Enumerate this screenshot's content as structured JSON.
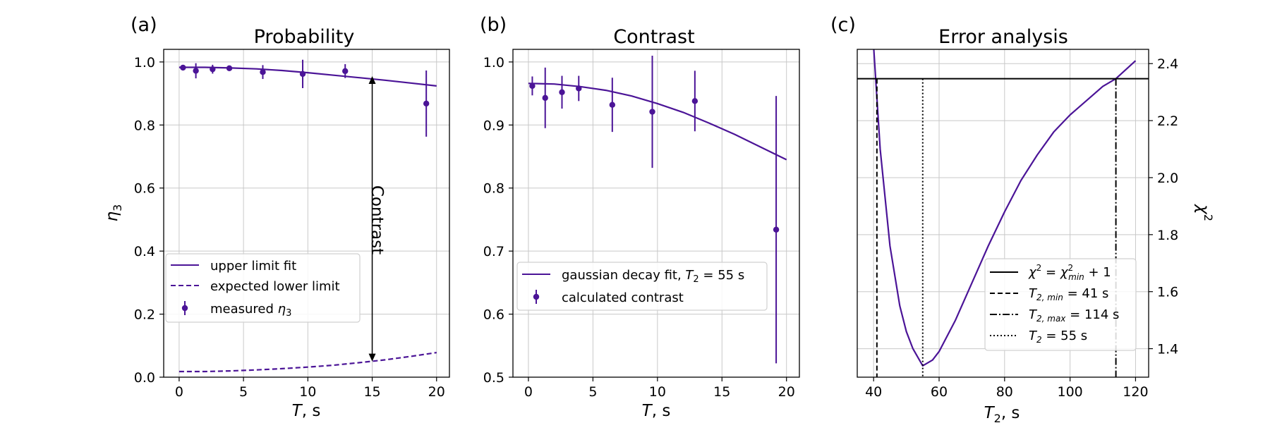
{
  "colors": {
    "series": "#4b1497",
    "frame": "#000000",
    "grid": "#c8c8c8",
    "legend_edge": "#d0d0d0"
  },
  "chart_data": [
    {
      "type": "line",
      "panel": "(a)",
      "title": "Probability",
      "xlabel_italic": "T",
      "xlabel_rest": ", s",
      "ylabel_main": "η",
      "ylabel_sub": "3",
      "xlim": [
        -1.2,
        21.0
      ],
      "ylim": [
        0.0,
        1.04
      ],
      "xticks": [
        0,
        5,
        10,
        15,
        20
      ],
      "xtick_labels": [
        "0",
        "5",
        "10",
        "15",
        "20"
      ],
      "yticks": [
        0.0,
        0.2,
        0.4,
        0.6,
        0.8,
        1.0
      ],
      "ytick_labels": [
        "0.0",
        "0.2",
        "0.4",
        "0.6",
        "0.8",
        "1.0"
      ],
      "upper_fit": {
        "name": "upper limit fit",
        "x": [
          0,
          2,
          4,
          6,
          8,
          10,
          12,
          14,
          16,
          18,
          20
        ],
        "y": [
          0.983,
          0.983,
          0.981,
          0.978,
          0.973,
          0.966,
          0.958,
          0.95,
          0.942,
          0.933,
          0.924
        ]
      },
      "lower_limit": {
        "name": "expected lower limit",
        "x": [
          0,
          2,
          4,
          6,
          8,
          10,
          12,
          14,
          16,
          18,
          20
        ],
        "y": [
          0.018,
          0.018,
          0.02,
          0.023,
          0.027,
          0.032,
          0.038,
          0.046,
          0.055,
          0.066,
          0.078
        ]
      },
      "measured": {
        "name_prefix": "measured ",
        "name_symbol": "η",
        "name_sub": "3",
        "x": [
          0.3,
          1.3,
          2.6,
          3.9,
          6.5,
          9.6,
          12.9,
          19.2
        ],
        "y": [
          0.982,
          0.972,
          0.977,
          0.98,
          0.968,
          0.962,
          0.971,
          0.868
        ],
        "err": [
          0.006,
          0.024,
          0.014,
          0.008,
          0.022,
          0.045,
          0.022,
          0.105
        ]
      },
      "annotation": {
        "text": "Contrast",
        "x": 15.0,
        "y_top": 0.955,
        "y_bottom": 0.05
      }
    },
    {
      "type": "line",
      "panel": "(b)",
      "title": "Contrast",
      "xlabel_italic": "T",
      "xlabel_rest": ", s",
      "xlim": [
        -1.2,
        21.0
      ],
      "ylim": [
        0.5,
        1.02
      ],
      "xticks": [
        0,
        5,
        10,
        15,
        20
      ],
      "xtick_labels": [
        "0",
        "5",
        "10",
        "15",
        "20"
      ],
      "yticks": [
        0.5,
        0.6,
        0.7,
        0.8,
        0.9,
        1.0
      ],
      "ytick_labels": [
        "0.5",
        "0.6",
        "0.7",
        "0.8",
        "0.9",
        "1.0"
      ],
      "fit": {
        "name_prefix": "gaussian decay fit, ",
        "name_var": "T",
        "name_sub": "2",
        "name_rest": " = 55 s",
        "x": [
          0,
          2,
          4,
          6,
          8,
          10,
          12,
          14,
          16,
          18,
          20
        ],
        "y": [
          0.966,
          0.965,
          0.961,
          0.955,
          0.946,
          0.934,
          0.92,
          0.903,
          0.885,
          0.865,
          0.845
        ]
      },
      "calculated": {
        "name": "calculated contrast",
        "x": [
          0.3,
          1.3,
          2.6,
          3.9,
          6.5,
          9.6,
          12.9,
          19.2
        ],
        "y": [
          0.962,
          0.943,
          0.952,
          0.958,
          0.932,
          0.921,
          0.938,
          0.734
        ],
        "err": [
          0.015,
          0.048,
          0.026,
          0.02,
          0.043,
          0.089,
          0.048,
          0.212
        ]
      }
    },
    {
      "type": "line",
      "panel": "(c)",
      "title": "Error analysis",
      "xlabel_italic": "T",
      "xlabel_sub": "2",
      "xlabel_rest": ", s",
      "ylabel_main": "χ",
      "ylabel_sup": "2",
      "ylabel_position": "right",
      "xlim": [
        35,
        124
      ],
      "ylim": [
        1.3,
        2.45
      ],
      "xticks": [
        40,
        60,
        80,
        100,
        120
      ],
      "xtick_labels": [
        "40",
        "60",
        "80",
        "100",
        "120"
      ],
      "yticks": [
        1.4,
        1.6,
        1.8,
        2.0,
        2.2,
        2.4
      ],
      "ytick_labels": [
        "1.4",
        "1.6",
        "1.8",
        "2.0",
        "2.2",
        "2.4"
      ],
      "chi2_curve": {
        "x": [
          40,
          42,
          45,
          48,
          50,
          52,
          55,
          58,
          60,
          65,
          70,
          75,
          80,
          85,
          90,
          95,
          100,
          105,
          110,
          114,
          120
        ],
        "y": [
          2.46,
          2.1,
          1.76,
          1.55,
          1.46,
          1.4,
          1.34,
          1.36,
          1.39,
          1.5,
          1.63,
          1.76,
          1.88,
          1.99,
          2.08,
          2.16,
          2.22,
          2.27,
          2.32,
          2.347,
          2.41
        ]
      },
      "threshold": {
        "y": 2.347,
        "label_main": "χ",
        "label_sup": "2",
        "label_eq": " = ",
        "label_main2": "χ",
        "label_sub2": "min",
        "label_sup2": "2",
        "label_tail": " + 1"
      },
      "t2_min": {
        "x": 41,
        "label_var": "T",
        "label_sub": "2, min",
        "label_rest": " = 41 s"
      },
      "t2_max": {
        "x": 114,
        "label_var": "T",
        "label_sub": "2, max",
        "label_rest": " = 114 s"
      },
      "t2_best": {
        "x": 55,
        "label_var": "T",
        "label_sub": "2",
        "label_rest": " = 55 s"
      }
    }
  ]
}
